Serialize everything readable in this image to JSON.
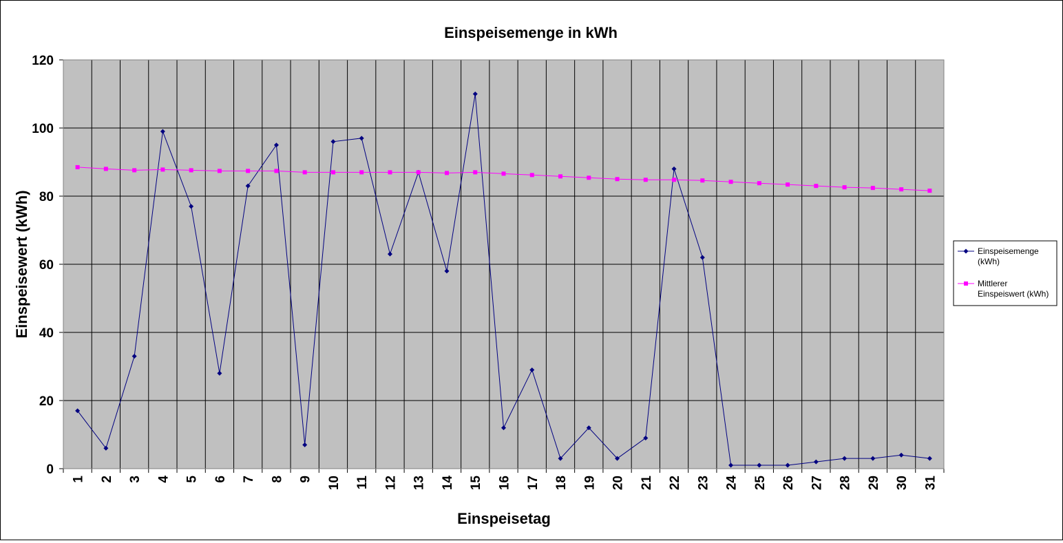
{
  "chart_data": {
    "type": "line",
    "title": "Einspeisemenge in kWh",
    "xlabel": "Einspeisetag",
    "ylabel": "Einspeisewert  (kWh)",
    "x": [
      "1",
      "2",
      "3",
      "4",
      "5",
      "6",
      "7",
      "8",
      "9",
      "10",
      "11",
      "12",
      "13",
      "14",
      "15",
      "16",
      "17",
      "18",
      "19",
      "20",
      "21",
      "22",
      "23",
      "24",
      "25",
      "26",
      "27",
      "28",
      "29",
      "30",
      "31"
    ],
    "ylim": [
      0,
      120
    ],
    "yticks": [
      "0",
      "20",
      "40",
      "60",
      "80",
      "100",
      "120"
    ],
    "grid": true,
    "legend_position": "right",
    "series": [
      {
        "name": "Einspeisemenge (kWh)",
        "legend_lines": [
          "Einspeisemenge",
          "(kWh)"
        ],
        "color": "#000080",
        "marker": "diamond",
        "values": [
          17,
          6,
          33,
          99,
          77,
          28,
          83,
          95,
          7,
          96,
          97,
          63,
          87,
          58,
          110,
          12,
          29,
          3,
          12,
          3,
          9,
          88,
          62,
          1,
          1,
          1,
          2,
          3,
          3,
          4,
          3
        ]
      },
      {
        "name": "Mittlerer Einspeiswert (kWh)",
        "legend_lines": [
          "Mittlerer",
          "Einspeiswert (kWh)"
        ],
        "color": "#ff00ff",
        "marker": "square",
        "values": [
          88.5,
          88,
          87.6,
          87.8,
          87.6,
          87.4,
          87.4,
          87.4,
          87,
          87,
          87,
          87,
          87,
          86.8,
          87,
          86.6,
          86.2,
          85.8,
          85.4,
          85,
          84.8,
          84.8,
          84.6,
          84.2,
          83.8,
          83.4,
          83,
          82.6,
          82.4,
          82,
          81.6
        ]
      }
    ],
    "colors": {
      "plot_background": "#c0c0c0",
      "gridline": "#000000"
    }
  }
}
